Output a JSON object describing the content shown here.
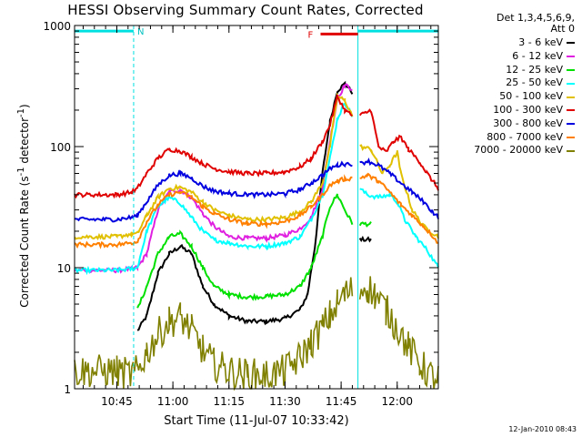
{
  "chart_data": {
    "type": "line",
    "title": "HESSI Observing Summary Count Rates, Corrected",
    "xlabel_prefix": "Start Time (",
    "xlabel_date": "11-Jul-07 10:33:42",
    "xlabel_suffix": ")",
    "ylabel_main": "Corrected Count Rate (s",
    "ylabel_sup1": "-1",
    "ylabel_mid": " detector",
    "ylabel_sup2": "-1",
    "ylabel_end": ")",
    "yscale": "log",
    "ylim": [
      1,
      1000
    ],
    "xlim_minutes": [
      34,
      105
    ],
    "x_ticks": [
      {
        "minute": 45,
        "label": "10:45"
      },
      {
        "minute": 60,
        "label": "11:00"
      },
      {
        "minute": 75,
        "label": "11:15"
      },
      {
        "minute": 90,
        "label": "11:30"
      },
      {
        "minute": 105,
        "label": "11:45"
      },
      {
        "minute": 120,
        "label": "12:00"
      }
    ],
    "y_ticks": [
      {
        "value": 1,
        "label": "1"
      },
      {
        "value": 10,
        "label": "10"
      },
      {
        "value": 100,
        "label": "100"
      },
      {
        "value": 1000,
        "label": "1000"
      }
    ],
    "legend_header": [
      "Det 1,3,4,5,6,9,",
      "Att 0"
    ],
    "annotations": {
      "night_label": "N",
      "flare_label": "F",
      "night_segments_minutes": [
        [
          33.7,
          49.5
        ],
        [
          109.5,
          131
        ]
      ],
      "flare_segment_minutes": [
        99.5,
        109.5
      ],
      "flare_level": 850,
      "night_level": 900,
      "saa_lines_minutes": [
        33.7,
        49.5,
        109.5,
        131
      ]
    },
    "series": [
      {
        "name": "3 - 6 keV",
        "color": "#000000",
        "points": [
          [
            50.5,
            3
          ],
          [
            53,
            4
          ],
          [
            56,
            9
          ],
          [
            59,
            13
          ],
          [
            62,
            15
          ],
          [
            65,
            13
          ],
          [
            68,
            7
          ],
          [
            71,
            5
          ],
          [
            75,
            4
          ],
          [
            80,
            3.6
          ],
          [
            85,
            3.6
          ],
          [
            90,
            3.8
          ],
          [
            94,
            4.5
          ],
          [
            96,
            6
          ],
          [
            98,
            15
          ],
          [
            100,
            60
          ],
          [
            102,
            160
          ],
          [
            104,
            290
          ],
          [
            106,
            330
          ],
          [
            108,
            280
          ],
          [
            109.5,
            null
          ],
          [
            110,
            17
          ],
          [
            113,
            17
          ]
        ]
      },
      {
        "name": "6 - 12 keV",
        "color": "#e020e0",
        "points": [
          [
            33.7,
            9.5
          ],
          [
            45,
            9.5
          ],
          [
            49,
            9.8
          ],
          [
            50.5,
            10
          ],
          [
            53,
            13
          ],
          [
            56,
            30
          ],
          [
            59,
            42
          ],
          [
            62,
            44
          ],
          [
            65,
            38
          ],
          [
            68,
            28
          ],
          [
            71,
            22
          ],
          [
            75,
            18
          ],
          [
            80,
            17.5
          ],
          [
            85,
            17.5
          ],
          [
            90,
            18.5
          ],
          [
            94,
            21
          ],
          [
            97,
            26
          ],
          [
            100,
            45
          ],
          [
            102,
            110
          ],
          [
            104,
            250
          ],
          [
            106,
            320
          ],
          [
            108,
            300
          ],
          [
            109.5,
            null
          ]
        ]
      },
      {
        "name": "12 - 25 keV",
        "color": "#00e000",
        "points": [
          [
            50.5,
            4.5
          ],
          [
            53,
            7
          ],
          [
            56,
            13
          ],
          [
            59,
            18
          ],
          [
            62,
            19
          ],
          [
            65,
            15
          ],
          [
            68,
            10
          ],
          [
            71,
            7
          ],
          [
            75,
            6
          ],
          [
            80,
            5.7
          ],
          [
            85,
            5.8
          ],
          [
            90,
            6
          ],
          [
            94,
            7
          ],
          [
            97,
            10
          ],
          [
            100,
            18
          ],
          [
            102,
            32
          ],
          [
            104,
            40
          ],
          [
            106,
            30
          ],
          [
            108,
            23
          ],
          [
            109.5,
            null
          ],
          [
            110,
            23
          ],
          [
            113,
            23
          ]
        ]
      },
      {
        "name": "25 - 50 keV",
        "color": "#00ffff",
        "points": [
          [
            33.7,
            9.5
          ],
          [
            45,
            9.5
          ],
          [
            49,
            9.8
          ],
          [
            50.5,
            10
          ],
          [
            53,
            20
          ],
          [
            56,
            32
          ],
          [
            59,
            38
          ],
          [
            62,
            34
          ],
          [
            65,
            26
          ],
          [
            68,
            20
          ],
          [
            71,
            17
          ],
          [
            75,
            16
          ],
          [
            80,
            15
          ],
          [
            85,
            15
          ],
          [
            90,
            16
          ],
          [
            94,
            18
          ],
          [
            97,
            25
          ],
          [
            100,
            40
          ],
          [
            102,
            80
          ],
          [
            104,
            170
          ],
          [
            106,
            230
          ],
          [
            108,
            180
          ],
          [
            109.5,
            null
          ],
          [
            110,
            45
          ],
          [
            112,
            40
          ],
          [
            115,
            38
          ],
          [
            118,
            40
          ],
          [
            120,
            35
          ],
          [
            122,
            25
          ],
          [
            125,
            18
          ],
          [
            128,
            14
          ],
          [
            131,
            10
          ]
        ]
      },
      {
        "name": "50 - 100 keV",
        "color": "#e0c000",
        "points": [
          [
            33.7,
            18
          ],
          [
            45,
            18
          ],
          [
            49,
            19
          ],
          [
            50.5,
            19
          ],
          [
            53,
            27
          ],
          [
            56,
            38
          ],
          [
            59,
            45
          ],
          [
            62,
            46
          ],
          [
            65,
            42
          ],
          [
            68,
            35
          ],
          [
            71,
            30
          ],
          [
            75,
            27
          ],
          [
            80,
            25
          ],
          [
            85,
            25
          ],
          [
            90,
            26
          ],
          [
            94,
            29
          ],
          [
            97,
            35
          ],
          [
            100,
            50
          ],
          [
            102,
            100
          ],
          [
            104,
            260
          ],
          [
            106,
            240
          ],
          [
            108,
            180
          ],
          [
            109.5,
            null
          ],
          [
            110,
            100
          ],
          [
            113,
            95
          ],
          [
            116,
            60
          ],
          [
            118,
            70
          ],
          [
            120,
            90
          ],
          [
            121,
            60
          ],
          [
            124,
            30
          ],
          [
            127,
            22
          ],
          [
            131,
            18
          ]
        ]
      },
      {
        "name": "100 - 300 keV",
        "color": "#e00000",
        "points": [
          [
            33.7,
            40
          ],
          [
            45,
            40
          ],
          [
            49,
            42
          ],
          [
            50.5,
            45
          ],
          [
            53,
            60
          ],
          [
            56,
            80
          ],
          [
            59,
            95
          ],
          [
            62,
            92
          ],
          [
            65,
            82
          ],
          [
            68,
            72
          ],
          [
            71,
            66
          ],
          [
            75,
            62
          ],
          [
            80,
            60
          ],
          [
            85,
            60
          ],
          [
            90,
            62
          ],
          [
            94,
            68
          ],
          [
            97,
            80
          ],
          [
            100,
            110
          ],
          [
            102,
            150
          ],
          [
            104,
            260
          ],
          [
            106,
            200
          ],
          [
            108,
            180
          ],
          [
            109.5,
            null
          ],
          [
            110,
            180
          ],
          [
            113,
            200
          ],
          [
            115,
            100
          ],
          [
            117,
            90
          ],
          [
            119,
            110
          ],
          [
            121,
            120
          ],
          [
            123,
            95
          ],
          [
            126,
            75
          ],
          [
            128,
            60
          ],
          [
            131,
            45
          ]
        ]
      },
      {
        "name": "300 - 800 keV",
        "color": "#0000e0",
        "points": [
          [
            33.7,
            25
          ],
          [
            45,
            25
          ],
          [
            49,
            26
          ],
          [
            50.5,
            27
          ],
          [
            53,
            35
          ],
          [
            56,
            48
          ],
          [
            59,
            58
          ],
          [
            62,
            60
          ],
          [
            65,
            55
          ],
          [
            68,
            47
          ],
          [
            71,
            43
          ],
          [
            75,
            41
          ],
          [
            80,
            40
          ],
          [
            85,
            40
          ],
          [
            90,
            41
          ],
          [
            94,
            44
          ],
          [
            97,
            50
          ],
          [
            100,
            58
          ],
          [
            102,
            66
          ],
          [
            104,
            70
          ],
          [
            106,
            72
          ],
          [
            108,
            72
          ],
          [
            109.5,
            null
          ],
          [
            110,
            72
          ],
          [
            112,
            76
          ],
          [
            115,
            70
          ],
          [
            118,
            60
          ],
          [
            121,
            50
          ],
          [
            124,
            42
          ],
          [
            127,
            35
          ],
          [
            129,
            30
          ],
          [
            131,
            26
          ]
        ]
      },
      {
        "name": "800 - 7000 keV",
        "color": "#ff8000",
        "points": [
          [
            33.7,
            15.5
          ],
          [
            45,
            15.5
          ],
          [
            49,
            16
          ],
          [
            50.5,
            16.5
          ],
          [
            53,
            24
          ],
          [
            56,
            33
          ],
          [
            59,
            40
          ],
          [
            62,
            42
          ],
          [
            65,
            38
          ],
          [
            68,
            32
          ],
          [
            71,
            28
          ],
          [
            75,
            25
          ],
          [
            80,
            23
          ],
          [
            85,
            23
          ],
          [
            90,
            24
          ],
          [
            94,
            27
          ],
          [
            97,
            32
          ],
          [
            100,
            40
          ],
          [
            102,
            48
          ],
          [
            104,
            52
          ],
          [
            106,
            54
          ],
          [
            108,
            55
          ],
          [
            109.5,
            null
          ],
          [
            110,
            55
          ],
          [
            112,
            58
          ],
          [
            115,
            52
          ],
          [
            118,
            42
          ],
          [
            121,
            33
          ],
          [
            124,
            27
          ],
          [
            127,
            22
          ],
          [
            129,
            19
          ],
          [
            131,
            16
          ]
        ]
      },
      {
        "name": "7000 - 20000 keV",
        "color": "#808000",
        "points": [
          [
            33.7,
            1.4
          ],
          [
            45,
            1.4
          ],
          [
            49,
            1.3
          ],
          [
            50.5,
            1.4
          ],
          [
            53,
            2
          ],
          [
            56,
            2.8
          ],
          [
            59,
            3.6
          ],
          [
            62,
            3.9
          ],
          [
            65,
            3
          ],
          [
            68,
            2.1
          ],
          [
            71,
            1.6
          ],
          [
            75,
            1.4
          ],
          [
            80,
            1.3
          ],
          [
            85,
            1.3
          ],
          [
            90,
            1.4
          ],
          [
            94,
            1.8
          ],
          [
            97,
            2.4
          ],
          [
            100,
            3.2
          ],
          [
            102,
            4
          ],
          [
            104,
            5
          ],
          [
            106,
            6
          ],
          [
            108,
            6.5
          ],
          [
            109.5,
            null
          ],
          [
            110,
            6.5
          ],
          [
            112,
            7
          ],
          [
            114,
            6
          ],
          [
            117,
            4.5
          ],
          [
            120,
            3.2
          ],
          [
            123,
            2.2
          ],
          [
            126,
            1.6
          ],
          [
            129,
            1.3
          ],
          [
            131,
            1.2
          ]
        ]
      }
    ]
  },
  "footer_timestamp": "12-Jan-2010 08:43"
}
